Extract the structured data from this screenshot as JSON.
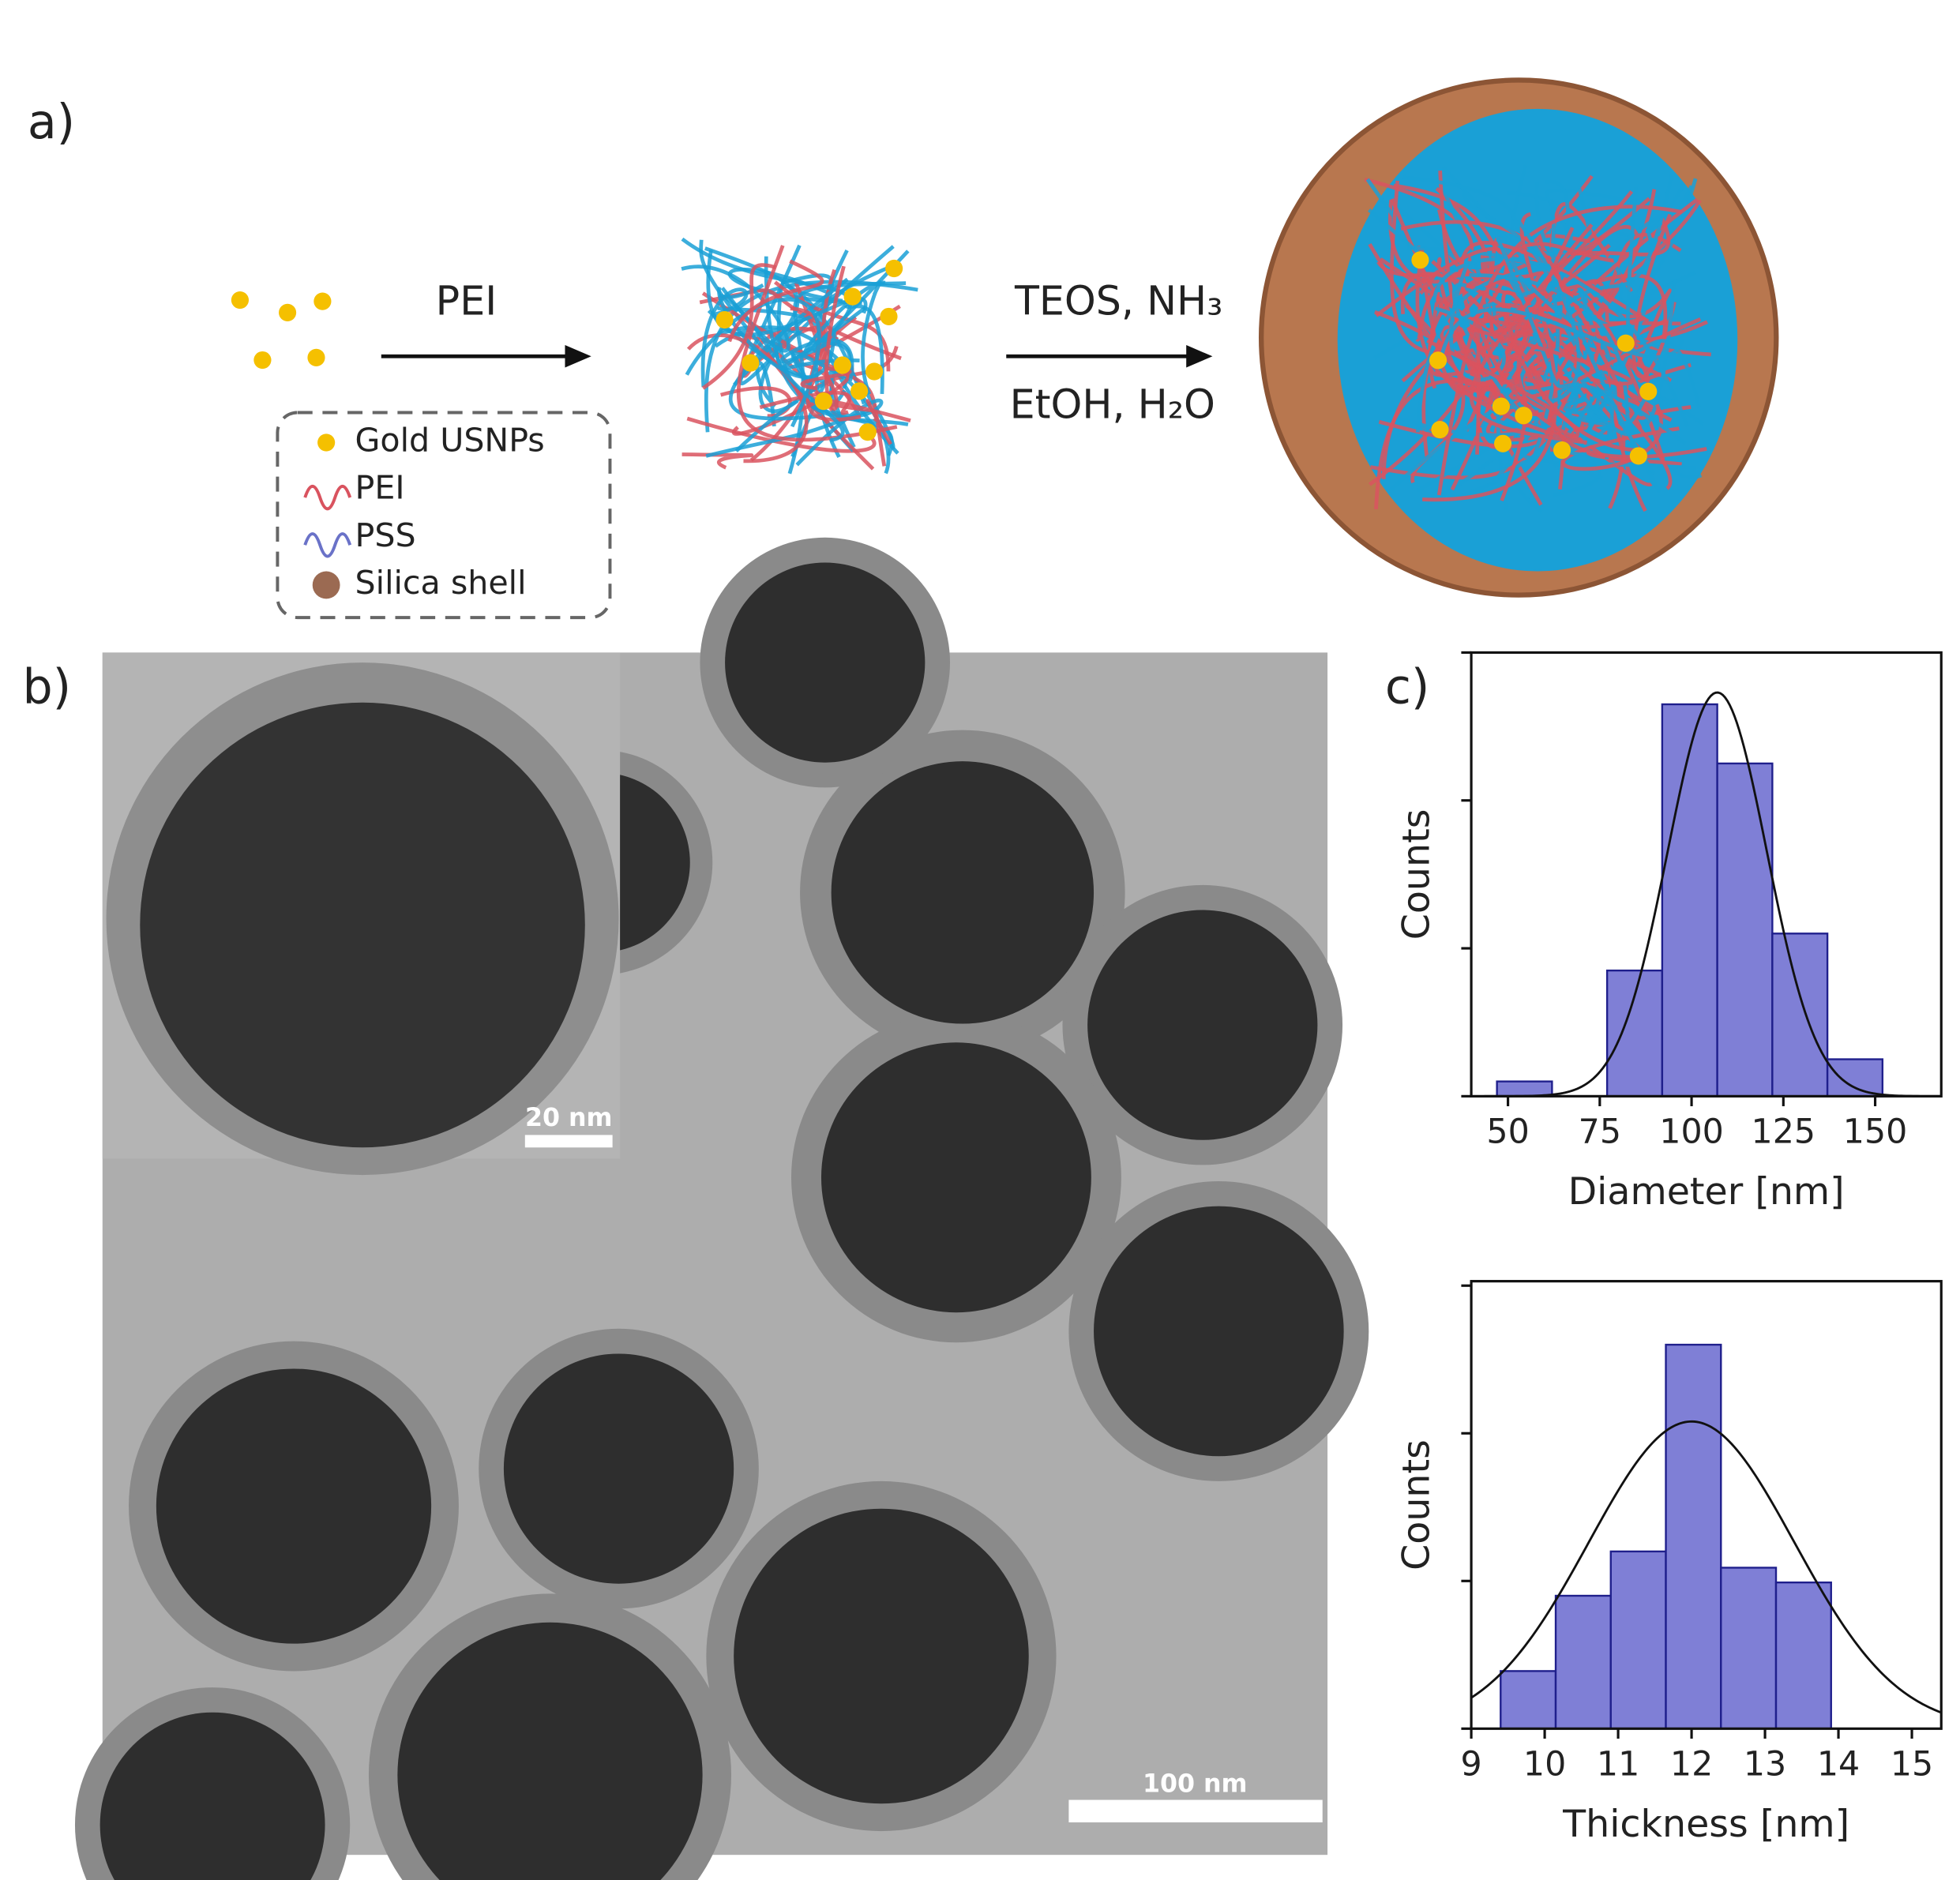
{
  "panels": {
    "a": "a)",
    "b": "b)",
    "c": "c)"
  },
  "scheme": {
    "step1": "PEI",
    "step2_top": "TEOS, NH₃",
    "step2_bottom": "EtOH, H₂O",
    "legend": [
      "Gold USNPs",
      "PEI",
      "PSS",
      "Silica shell"
    ]
  },
  "tem": {
    "inset_scale": "20 nm",
    "main_scale": "100 nm"
  },
  "chart_data": [
    {
      "type": "histogram",
      "xlabel": "Diameter [nm]",
      "ylabel": "Counts",
      "bins": [
        47,
        62,
        77,
        92,
        107,
        122,
        137,
        152
      ],
      "values": [
        1,
        0,
        8.5,
        26.5,
        22.5,
        11,
        2.5
      ],
      "color": "#7f7fd6",
      "edge_color": "#1f1f8c",
      "xlim": [
        40,
        168
      ],
      "xticks": [
        50,
        75,
        100,
        125,
        150
      ],
      "ylim": [
        0,
        30
      ],
      "yticks": [
        0,
        10,
        20,
        30
      ],
      "fit": {
        "mean": 107,
        "sd": 13.5,
        "peak": 27.3
      }
    },
    {
      "type": "histogram",
      "xlabel": "Thickness [nm]",
      "ylabel": "Counts",
      "bins": [
        9.4,
        10.15,
        10.9,
        11.65,
        12.4,
        13.15,
        13.9
      ],
      "values": [
        3.9,
        9,
        12,
        26,
        10.9,
        9.9
      ],
      "color": "#7f7fd6",
      "edge_color": "#1f1f8c",
      "xlim": [
        9,
        15.4
      ],
      "xticks": [
        9,
        10,
        11,
        12,
        13,
        14,
        15
      ],
      "ylim": [
        0,
        30.3
      ],
      "yticks": [
        0,
        10,
        20,
        30
      ],
      "fit": {
        "mean": 12,
        "sd": 1.4,
        "peak": 20.8
      }
    }
  ]
}
